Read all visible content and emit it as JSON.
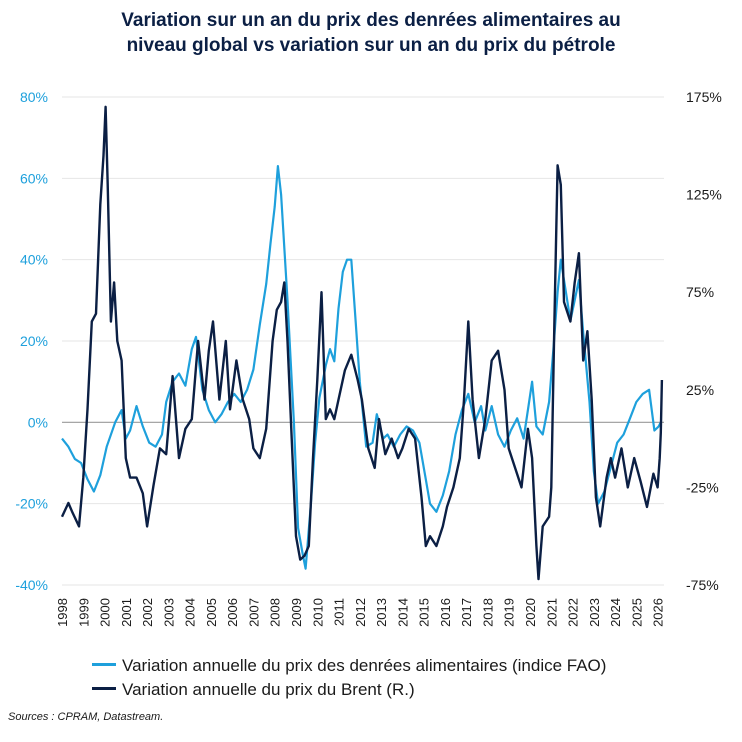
{
  "chart_data": {
    "type": "line",
    "title": [
      "Variation sur un an du prix des denrées alimentaires au",
      "niveau global vs variation sur un an du prix du pétrole"
    ],
    "x_tick_labels": [
      "1998",
      "1999",
      "2000",
      "2001",
      "2002",
      "2003",
      "2004",
      "2005",
      "2006",
      "2007",
      "2008",
      "2009",
      "2010",
      "2011",
      "2012",
      "2013",
      "2014",
      "2015",
      "2016",
      "2017",
      "2018",
      "2019",
      "2020",
      "2021",
      "2022",
      "2023",
      "2024",
      "2025",
      "2026"
    ],
    "xlim": [
      1998,
      2026.3
    ],
    "y_left": {
      "ticks": [
        "80%",
        "60%",
        "40%",
        "20%",
        "0%",
        "-20%",
        "-40%"
      ],
      "ylim": [
        -40,
        80
      ]
    },
    "y_right": {
      "ticks": [
        "175%",
        "125%",
        "75%",
        "25%",
        "-25%",
        "-75%"
      ],
      "ylim": [
        -75,
        175
      ]
    },
    "grid": true,
    "series": [
      {
        "name": "Variation annuelle du prix des denrées alimentaires (indice FAO)",
        "axis": "left",
        "color": "#1ea0dc",
        "points": [
          [
            1998.0,
            -4
          ],
          [
            1998.3,
            -6
          ],
          [
            1998.6,
            -9
          ],
          [
            1998.9,
            -10
          ],
          [
            1999.2,
            -14
          ],
          [
            1999.5,
            -17
          ],
          [
            1999.8,
            -13
          ],
          [
            2000.1,
            -6
          ],
          [
            2000.5,
            0
          ],
          [
            2000.8,
            3
          ],
          [
            2001.0,
            -4
          ],
          [
            2001.2,
            -2
          ],
          [
            2001.5,
            4
          ],
          [
            2001.8,
            -1
          ],
          [
            2002.1,
            -5
          ],
          [
            2002.4,
            -6
          ],
          [
            2002.7,
            -3
          ],
          [
            2002.9,
            5
          ],
          [
            2003.2,
            10
          ],
          [
            2003.5,
            12
          ],
          [
            2003.8,
            9
          ],
          [
            2004.1,
            18
          ],
          [
            2004.3,
            21
          ],
          [
            2004.6,
            8
          ],
          [
            2004.9,
            3
          ],
          [
            2005.2,
            0
          ],
          [
            2005.5,
            2
          ],
          [
            2005.8,
            5
          ],
          [
            2006.1,
            7
          ],
          [
            2006.4,
            5
          ],
          [
            2006.7,
            8
          ],
          [
            2007.0,
            13
          ],
          [
            2007.3,
            24
          ],
          [
            2007.6,
            34
          ],
          [
            2007.8,
            44
          ],
          [
            2008.0,
            53
          ],
          [
            2008.15,
            63
          ],
          [
            2008.3,
            56
          ],
          [
            2008.6,
            30
          ],
          [
            2008.9,
            0
          ],
          [
            2009.1,
            -26
          ],
          [
            2009.3,
            -32
          ],
          [
            2009.45,
            -36
          ],
          [
            2009.7,
            -20
          ],
          [
            2009.9,
            -5
          ],
          [
            2010.1,
            6
          ],
          [
            2010.4,
            14
          ],
          [
            2010.6,
            18
          ],
          [
            2010.8,
            15
          ],
          [
            2011.0,
            28
          ],
          [
            2011.2,
            37
          ],
          [
            2011.4,
            40
          ],
          [
            2011.6,
            40
          ],
          [
            2011.8,
            25
          ],
          [
            2012.0,
            10
          ],
          [
            2012.3,
            -6
          ],
          [
            2012.6,
            -5
          ],
          [
            2012.8,
            2
          ],
          [
            2013.1,
            -4
          ],
          [
            2013.3,
            -3
          ],
          [
            2013.6,
            -6
          ],
          [
            2013.9,
            -3
          ],
          [
            2014.2,
            -1
          ],
          [
            2014.5,
            -2
          ],
          [
            2014.8,
            -5
          ],
          [
            2015.1,
            -14
          ],
          [
            2015.3,
            -20
          ],
          [
            2015.6,
            -22
          ],
          [
            2015.9,
            -18
          ],
          [
            2016.2,
            -12
          ],
          [
            2016.5,
            -3
          ],
          [
            2016.8,
            3
          ],
          [
            2017.1,
            7
          ],
          [
            2017.4,
            0
          ],
          [
            2017.7,
            4
          ],
          [
            2017.9,
            -2
          ],
          [
            2018.2,
            4
          ],
          [
            2018.5,
            -3
          ],
          [
            2018.8,
            -6
          ],
          [
            2019.1,
            -2
          ],
          [
            2019.4,
            1
          ],
          [
            2019.7,
            -4
          ],
          [
            2019.9,
            3
          ],
          [
            2020.1,
            10
          ],
          [
            2020.3,
            -1
          ],
          [
            2020.6,
            -3
          ],
          [
            2020.9,
            5
          ],
          [
            2021.1,
            18
          ],
          [
            2021.3,
            32
          ],
          [
            2021.45,
            40
          ],
          [
            2021.6,
            35
          ],
          [
            2021.9,
            25
          ],
          [
            2022.1,
            30
          ],
          [
            2022.3,
            35
          ],
          [
            2022.5,
            22
          ],
          [
            2022.8,
            5
          ],
          [
            2023.0,
            -12
          ],
          [
            2023.2,
            -20
          ],
          [
            2023.5,
            -17
          ],
          [
            2023.8,
            -11
          ],
          [
            2024.1,
            -5
          ],
          [
            2024.4,
            -3
          ],
          [
            2024.7,
            1
          ],
          [
            2025.0,
            5
          ],
          [
            2025.3,
            7
          ],
          [
            2025.6,
            8
          ],
          [
            2025.85,
            -2
          ],
          [
            2026.05,
            -1
          ],
          [
            2026.15,
            0
          ]
        ]
      },
      {
        "name": "Variation annuelle du prix du Brent (R.)",
        "axis": "right",
        "color": "#0b1f44",
        "points": [
          [
            1998.0,
            -40
          ],
          [
            1998.3,
            -33
          ],
          [
            1998.5,
            -38
          ],
          [
            1998.8,
            -45
          ],
          [
            1999.0,
            -20
          ],
          [
            1999.2,
            15
          ],
          [
            1999.4,
            60
          ],
          [
            1999.6,
            64
          ],
          [
            1999.8,
            120
          ],
          [
            1999.95,
            145
          ],
          [
            2000.05,
            170
          ],
          [
            2000.15,
            130
          ],
          [
            2000.3,
            60
          ],
          [
            2000.45,
            80
          ],
          [
            2000.6,
            50
          ],
          [
            2000.8,
            40
          ],
          [
            2001.0,
            -10
          ],
          [
            2001.2,
            -20
          ],
          [
            2001.5,
            -20
          ],
          [
            2001.8,
            -28
          ],
          [
            2002.0,
            -45
          ],
          [
            2002.3,
            -24
          ],
          [
            2002.6,
            -5
          ],
          [
            2002.9,
            -8
          ],
          [
            2003.2,
            32
          ],
          [
            2003.5,
            -10
          ],
          [
            2003.8,
            5
          ],
          [
            2004.1,
            10
          ],
          [
            2004.4,
            50
          ],
          [
            2004.7,
            20
          ],
          [
            2004.9,
            45
          ],
          [
            2005.1,
            60
          ],
          [
            2005.4,
            20
          ],
          [
            2005.7,
            50
          ],
          [
            2005.9,
            15
          ],
          [
            2006.2,
            40
          ],
          [
            2006.5,
            20
          ],
          [
            2006.8,
            10
          ],
          [
            2007.0,
            -5
          ],
          [
            2007.3,
            -10
          ],
          [
            2007.6,
            5
          ],
          [
            2007.9,
            50
          ],
          [
            2008.1,
            66
          ],
          [
            2008.3,
            70
          ],
          [
            2008.45,
            80
          ],
          [
            2008.6,
            50
          ],
          [
            2008.8,
            0
          ],
          [
            2009.0,
            -50
          ],
          [
            2009.2,
            -62
          ],
          [
            2009.4,
            -60
          ],
          [
            2009.6,
            -55
          ],
          [
            2009.8,
            -10
          ],
          [
            2010.0,
            30
          ],
          [
            2010.2,
            75
          ],
          [
            2010.4,
            10
          ],
          [
            2010.6,
            15
          ],
          [
            2010.8,
            10
          ],
          [
            2011.0,
            20
          ],
          [
            2011.3,
            35
          ],
          [
            2011.6,
            43
          ],
          [
            2011.9,
            30
          ],
          [
            2012.1,
            20
          ],
          [
            2012.4,
            -5
          ],
          [
            2012.7,
            -15
          ],
          [
            2012.9,
            10
          ],
          [
            2013.2,
            -8
          ],
          [
            2013.5,
            0
          ],
          [
            2013.8,
            -10
          ],
          [
            2014.0,
            -5
          ],
          [
            2014.3,
            5
          ],
          [
            2014.6,
            0
          ],
          [
            2014.9,
            -30
          ],
          [
            2015.1,
            -55
          ],
          [
            2015.3,
            -50
          ],
          [
            2015.6,
            -55
          ],
          [
            2015.9,
            -45
          ],
          [
            2016.1,
            -35
          ],
          [
            2016.4,
            -25
          ],
          [
            2016.7,
            -10
          ],
          [
            2016.9,
            20
          ],
          [
            2017.1,
            60
          ],
          [
            2017.3,
            20
          ],
          [
            2017.6,
            -10
          ],
          [
            2017.9,
            10
          ],
          [
            2018.2,
            40
          ],
          [
            2018.5,
            45
          ],
          [
            2018.8,
            25
          ],
          [
            2019.0,
            -5
          ],
          [
            2019.3,
            -15
          ],
          [
            2019.6,
            -25
          ],
          [
            2019.9,
            5
          ],
          [
            2020.1,
            -10
          ],
          [
            2020.3,
            -55
          ],
          [
            2020.4,
            -72
          ],
          [
            2020.6,
            -45
          ],
          [
            2020.9,
            -40
          ],
          [
            2021.0,
            -25
          ],
          [
            2021.15,
            60
          ],
          [
            2021.3,
            140
          ],
          [
            2021.45,
            130
          ],
          [
            2021.6,
            70
          ],
          [
            2021.9,
            60
          ],
          [
            2022.1,
            80
          ],
          [
            2022.3,
            95
          ],
          [
            2022.5,
            40
          ],
          [
            2022.7,
            55
          ],
          [
            2022.9,
            20
          ],
          [
            2023.1,
            -30
          ],
          [
            2023.3,
            -45
          ],
          [
            2023.6,
            -20
          ],
          [
            2023.8,
            -10
          ],
          [
            2024.0,
            -20
          ],
          [
            2024.3,
            -5
          ],
          [
            2024.6,
            -25
          ],
          [
            2024.9,
            -10
          ],
          [
            2025.2,
            -22
          ],
          [
            2025.5,
            -35
          ],
          [
            2025.8,
            -18
          ],
          [
            2026.0,
            -25
          ],
          [
            2026.1,
            -10
          ],
          [
            2026.15,
            3
          ],
          [
            2026.2,
            30
          ]
        ]
      }
    ]
  },
  "legend": {
    "series1": "Variation annuelle du prix des denrées alimentaires (indice FAO)",
    "series2": "Variation annuelle du prix du Brent (R.)"
  },
  "source": "Sources : CPRAM, Datastream.",
  "colors": {
    "food": "#1ea0dc",
    "brent": "#0b1f44",
    "left_axis_text": "#1ea0dc",
    "grid": "#e6e6e6",
    "zero_line": "#999999"
  }
}
